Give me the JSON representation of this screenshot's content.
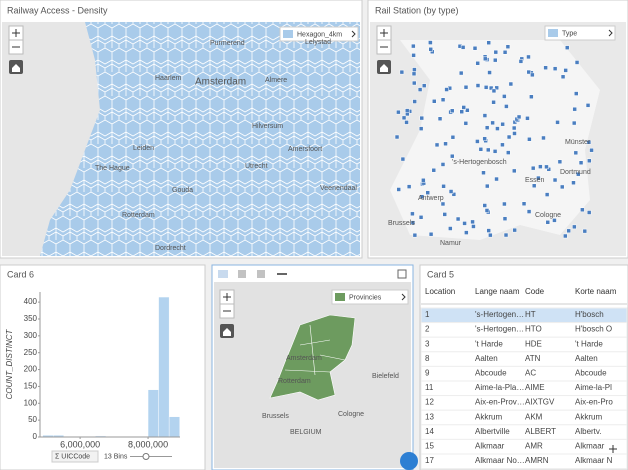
{
  "cards": {
    "density": {
      "title": "Railway Access - Density",
      "legend": "Hexagon_4km",
      "places": [
        "Purmerend",
        "Lelystad",
        "Haarlem",
        "Amsterdam",
        "Almere",
        "Hilversum",
        "Leiden",
        "The Hague",
        "Utrecht",
        "Amersfoort",
        "Gouda",
        "Veenendaal",
        "Rotterdam",
        "Dordrecht"
      ]
    },
    "stations": {
      "title": "Rail Station (by type)",
      "legend": "Type",
      "places": [
        "'s-Hertogenbosch",
        "Münster",
        "Dortmund",
        "Essen",
        "Antwerp",
        "Brussels",
        "Cologne",
        "Namur"
      ]
    },
    "provinces": {
      "legend": "Provincies",
      "places": [
        "Amsterdam",
        "Rotterdam",
        "Bielefeld",
        "Brussels",
        "BELGIUM",
        "Cologne"
      ]
    },
    "histogram_card": {
      "title": "Card 6",
      "field": "Σ UICCode",
      "bins_label": "13 Bins"
    },
    "table": {
      "title": "Card 5",
      "columns": [
        "Location",
        "Lange naam",
        "Code",
        "Korte naam"
      ],
      "rows": [
        [
          "1",
          "'s-Hertogen…",
          "HT",
          "H'bosch"
        ],
        [
          "2",
          "'s-Hertogen…",
          "HTO",
          "H'bosch O"
        ],
        [
          "3",
          "'t Harde",
          "HDE",
          "'t Harde"
        ],
        [
          "8",
          "Aalten",
          "ATN",
          "Aalten"
        ],
        [
          "9",
          "Abcoude",
          "AC",
          "Abcoude"
        ],
        [
          "11",
          "Aime-la-Pla…",
          "AIME",
          "Aime-la-Pl"
        ],
        [
          "12",
          "Aix-en-Prov…",
          "AIXTGV",
          "Aix-en-Pro"
        ],
        [
          "13",
          "Akkrum",
          "AKM",
          "Akkrum"
        ],
        [
          "14",
          "Albertville",
          "ALBERT",
          "Albertv."
        ],
        [
          "15",
          "Alkmaar",
          "AMR",
          "Alkmaar"
        ],
        [
          "17",
          "Alkmaar No…",
          "AMRN",
          "Alkmaar N"
        ]
      ]
    }
  },
  "chart_data": {
    "type": "histogram",
    "y_label": "COUNT_DISTINCT",
    "color": "#b3d3ef",
    "bins": [
      4900000,
      5210000,
      5520000,
      5830000,
      6140000,
      6450000,
      6760000,
      7070000,
      7380000,
      7690000,
      8000000,
      8310000,
      8620000,
      8930000
    ],
    "values": [
      5,
      5,
      0,
      0,
      0,
      3,
      0,
      0,
      0,
      0,
      140,
      415,
      60
    ],
    "xlim": [
      4820000,
      8940000
    ],
    "ylim": [
      0,
      430
    ],
    "xticks": [
      {
        "value": 6000000,
        "label": "6,000,000"
      },
      {
        "value": 8000000,
        "label": "8,000,000"
      }
    ],
    "yticks": [
      0,
      50,
      100,
      150,
      200,
      250,
      300,
      350,
      400
    ]
  }
}
